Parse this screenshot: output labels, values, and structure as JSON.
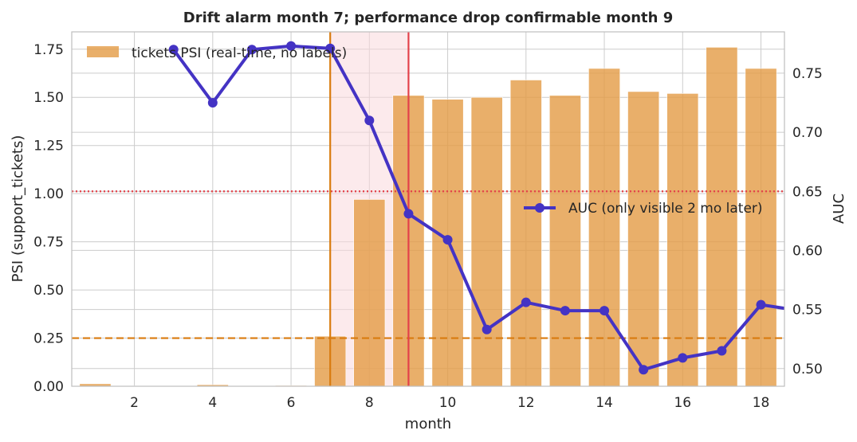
{
  "chart_data": {
    "type": "bar",
    "title": "Drift alarm month 7; performance drop confirmable month 9",
    "xlabel": "month",
    "ylabel": "PSI (support_tickets)",
    "y2label": "AUC",
    "xlim": [
      0.4,
      18.6
    ],
    "ylim": [
      0,
      1.84
    ],
    "y2lim": [
      0.485,
      0.785
    ],
    "xticks": [
      2,
      4,
      6,
      8,
      10,
      12,
      14,
      16,
      18
    ],
    "yticks": [
      0.0,
      0.25,
      0.5,
      0.75,
      1.0,
      1.25,
      1.5,
      1.75
    ],
    "ytick_labels": [
      "0.00",
      "0.25",
      "0.50",
      "0.75",
      "1.00",
      "1.25",
      "1.50",
      "1.75"
    ],
    "y2ticks": [
      0.5,
      0.55,
      0.6,
      0.65,
      0.7,
      0.75
    ],
    "y2tick_labels": [
      "0.50",
      "0.55",
      "0.60",
      "0.65",
      "0.70",
      "0.75"
    ],
    "grid": true,
    "series": [
      {
        "name": "tickets PSI (real-time, no labels)",
        "type": "bar",
        "axis": "left",
        "color": "#e39b45",
        "x": [
          1,
          2,
          3,
          4,
          5,
          6,
          7,
          8,
          9,
          10,
          11,
          12,
          13,
          14,
          15,
          16,
          17,
          18
        ],
        "values": [
          0.013,
          0.002,
          0.003,
          0.008,
          0.003,
          0.004,
          0.26,
          0.97,
          1.51,
          1.49,
          1.5,
          1.59,
          1.51,
          1.65,
          1.53,
          1.52,
          1.76,
          1.65
        ]
      },
      {
        "name": "AUC (only visible 2 mo later)",
        "type": "line",
        "axis": "right",
        "color": "#4433c4",
        "x": [
          3,
          4,
          5,
          6,
          7,
          8,
          9,
          10,
          11,
          12,
          13,
          14,
          15,
          16,
          17,
          18,
          18.6
        ],
        "values": [
          0.77,
          0.725,
          0.77,
          0.773,
          0.771,
          0.71,
          0.631,
          0.609,
          0.533,
          0.556,
          0.549,
          0.549,
          0.499,
          0.509,
          0.515,
          0.554,
          0.551
        ]
      }
    ],
    "reference_lines": {
      "psi_threshold": 0.25,
      "auc_threshold": 0.65,
      "alarm_month": 7,
      "confirm_month": 9
    },
    "shaded_region": [
      7,
      9
    ],
    "legends": [
      {
        "series": 0,
        "placement": "upper-left"
      },
      {
        "series": 1,
        "placement": "center-right"
      }
    ],
    "colors": {
      "bar": "#e39b45",
      "line": "#4433c4",
      "psi_threshold": "#d97b0f",
      "auc_threshold": "#e3414a",
      "alarm_line": "#d97b0f",
      "confirm_line": "#e3414a",
      "shade": "#f9d9dc",
      "grid": "#cccccc",
      "spine": "#bfbfbf"
    }
  }
}
